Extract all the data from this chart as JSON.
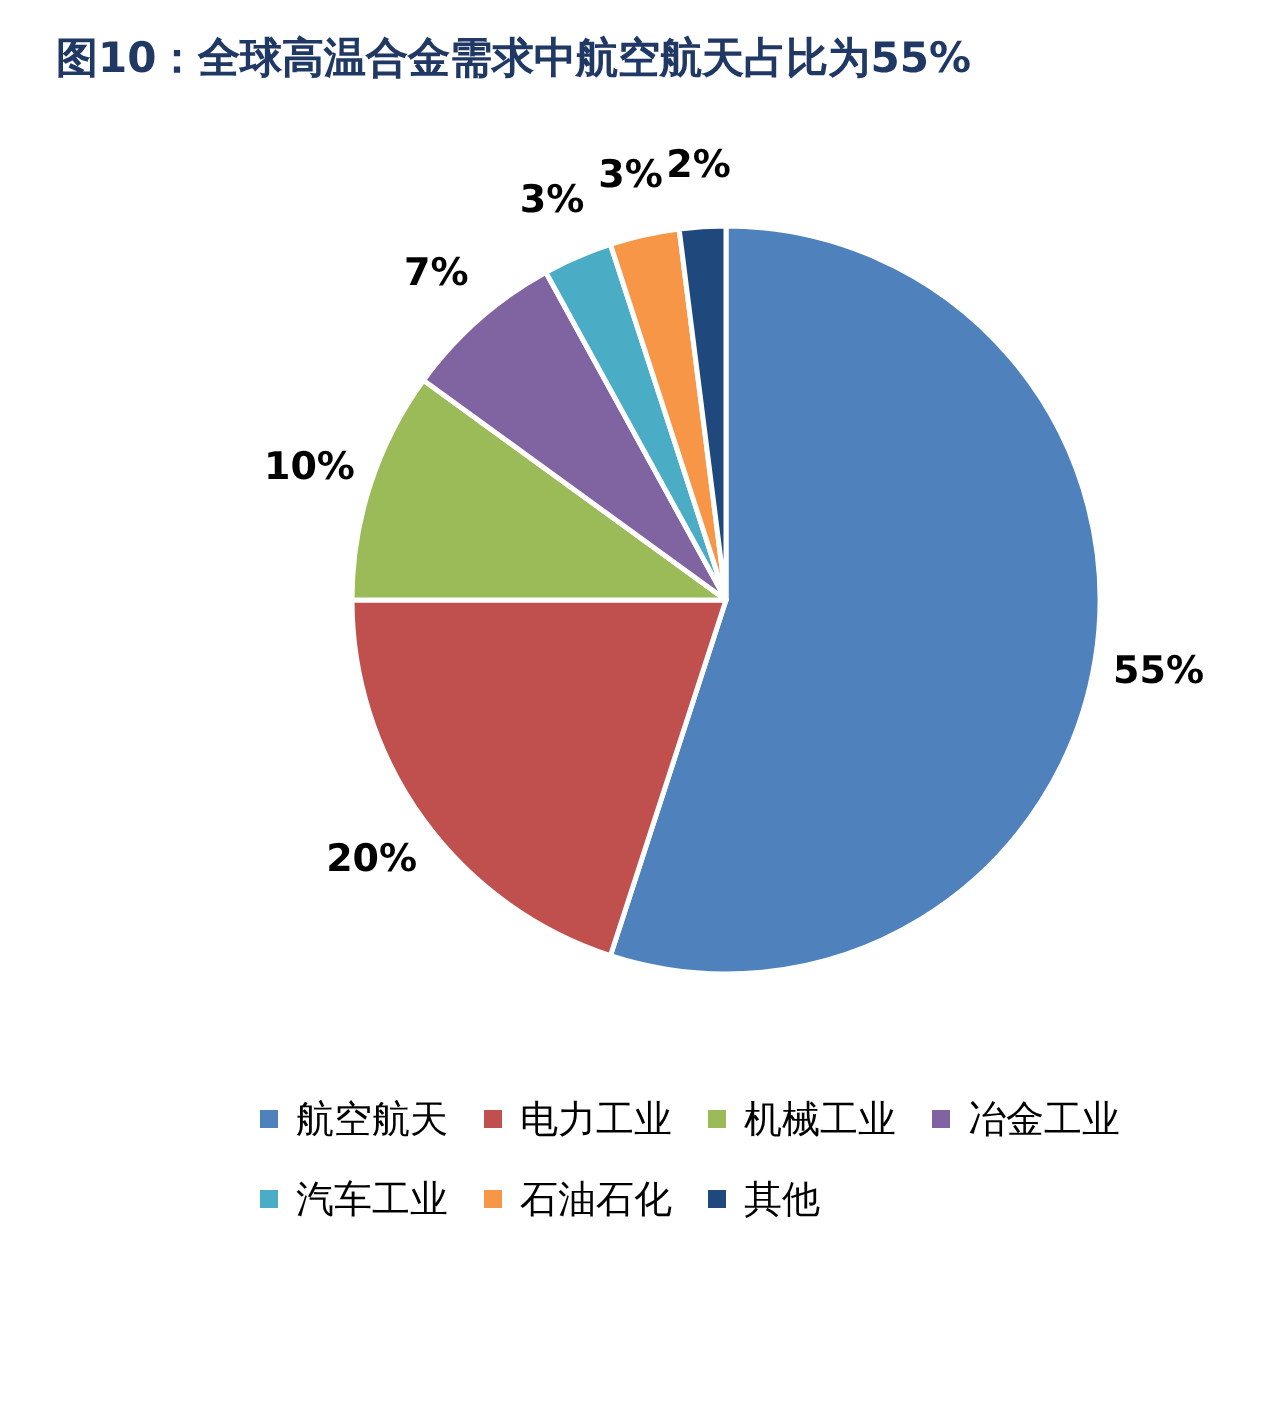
{
  "chart_data": {
    "type": "pie",
    "title": "图10：全球高温合金需求中航空航天占比为55%",
    "categories": [
      "航空航天",
      "电力工业",
      "机械工业",
      "冶金工业",
      "汽车工业",
      "石油石化",
      "其他"
    ],
    "values": [
      55,
      20,
      10,
      7,
      3,
      3,
      2
    ],
    "colors": [
      "#4f81bd",
      "#c0504d",
      "#9bbb59",
      "#8064a2",
      "#4bacc6",
      "#f79646",
      "#1f497d"
    ],
    "value_labels": [
      "55%",
      "20%",
      "10%",
      "7%",
      "3%",
      "3%",
      "2%"
    ],
    "legend": "bottom"
  }
}
